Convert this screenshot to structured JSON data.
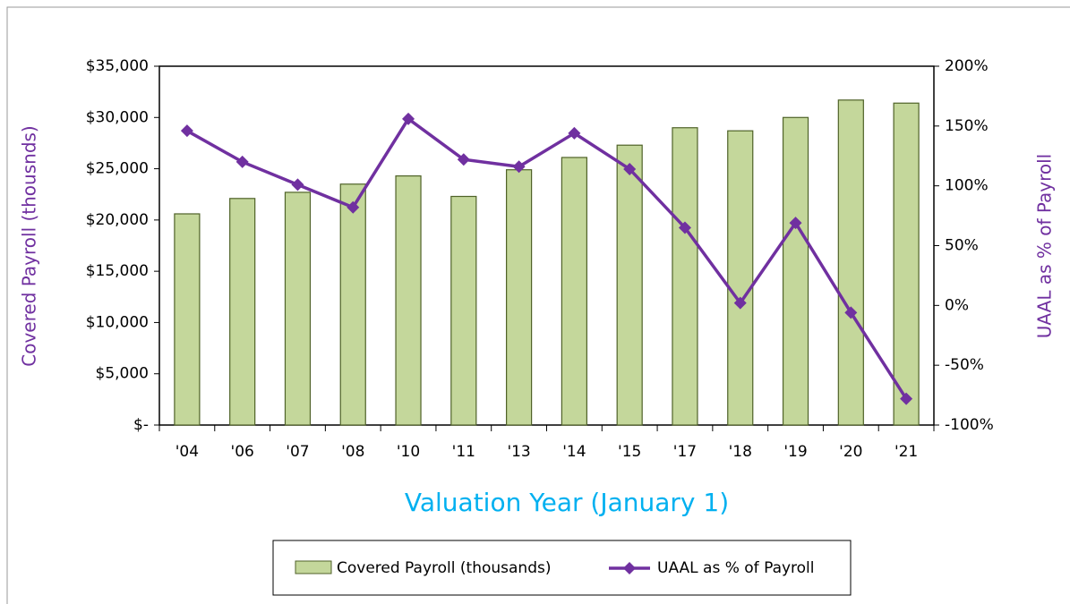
{
  "chart_data": {
    "type": "bar-line",
    "x_label": "Valuation Year (January 1)",
    "y_label": "Covered Payroll (thousnds)",
    "y2_label": "UAAL as % of Payroll",
    "categories": [
      "'04",
      "'06",
      "'07",
      "'08",
      "'10",
      "'11",
      "'13",
      "'14",
      "'15",
      "'17",
      "'18",
      "'19",
      "'20",
      "'21"
    ],
    "series": [
      {
        "name": "Covered Payroll (thousands)",
        "type": "bar",
        "color": "#c4d79b",
        "edge_color": "#4f6228",
        "values": [
          20600,
          22100,
          22700,
          23500,
          24300,
          22300,
          24900,
          26100,
          27300,
          29000,
          28700,
          30000,
          31700,
          31400
        ]
      },
      {
        "name": "UAAL as % of Payroll",
        "type": "line",
        "axis": "y2",
        "color": "#7030a0",
        "values": [
          146,
          120,
          101,
          82,
          156,
          122,
          116,
          144,
          114,
          65,
          2,
          69,
          -6,
          -78
        ]
      }
    ],
    "ylim": [
      0,
      35000
    ],
    "yticks": [
      {
        "value": 0,
        "label": "$-"
      },
      {
        "value": 5000,
        "label": "$5,000"
      },
      {
        "value": 10000,
        "label": "$10,000"
      },
      {
        "value": 15000,
        "label": "$15,000"
      },
      {
        "value": 20000,
        "label": "$20,000"
      },
      {
        "value": 25000,
        "label": "$25,000"
      },
      {
        "value": 30000,
        "label": "$30,000"
      },
      {
        "value": 35000,
        "label": "$35,000"
      }
    ],
    "y2lim": [
      -100,
      200
    ],
    "y2ticks": [
      {
        "value": -100,
        "label": "-100%"
      },
      {
        "value": -50,
        "label": "-50%"
      },
      {
        "value": 0,
        "label": "0%"
      },
      {
        "value": 50,
        "label": "50%"
      },
      {
        "value": 100,
        "label": "100%"
      },
      {
        "value": 150,
        "label": "150%"
      },
      {
        "value": 200,
        "label": "200%"
      }
    ],
    "legend": "bottom"
  }
}
